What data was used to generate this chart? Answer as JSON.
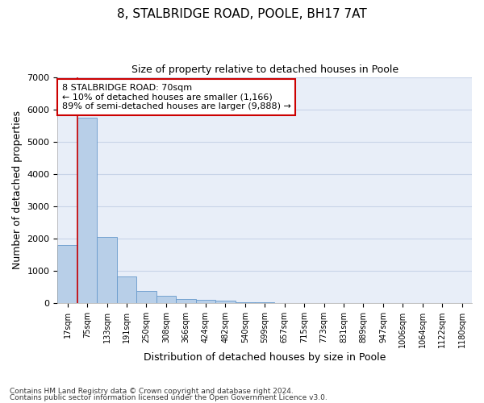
{
  "title1": "8, STALBRIDGE ROAD, POOLE, BH17 7AT",
  "title2": "Size of property relative to detached houses in Poole",
  "xlabel": "Distribution of detached houses by size in Poole",
  "ylabel": "Number of detached properties",
  "bar_labels": [
    "17sqm",
    "75sqm",
    "133sqm",
    "191sqm",
    "250sqm",
    "308sqm",
    "366sqm",
    "424sqm",
    "482sqm",
    "540sqm",
    "599sqm",
    "657sqm",
    "715sqm",
    "773sqm",
    "831sqm",
    "889sqm",
    "947sqm",
    "1006sqm",
    "1064sqm",
    "1122sqm",
    "1180sqm"
  ],
  "bar_heights": [
    1800,
    5750,
    2050,
    820,
    370,
    240,
    130,
    95,
    80,
    30,
    20,
    10,
    5,
    3,
    2,
    1,
    1,
    0,
    0,
    0,
    0
  ],
  "bar_color": "#b8cfe8",
  "bar_edge_color": "#6699cc",
  "annotation_box_text": "8 STALBRIDGE ROAD: 70sqm\n← 10% of detached houses are smaller (1,166)\n89% of semi-detached houses are larger (9,888) →",
  "annotation_box_color": "#ffffff",
  "annotation_box_edge_color": "#cc0000",
  "vline_color": "#cc0000",
  "ylim": [
    0,
    7000
  ],
  "yticks": [
    0,
    1000,
    2000,
    3000,
    4000,
    5000,
    6000,
    7000
  ],
  "grid_color": "#c8d4e8",
  "bg_color": "#e8eef8",
  "footnote1": "Contains HM Land Registry data © Crown copyright and database right 2024.",
  "footnote2": "Contains public sector information licensed under the Open Government Licence v3.0."
}
